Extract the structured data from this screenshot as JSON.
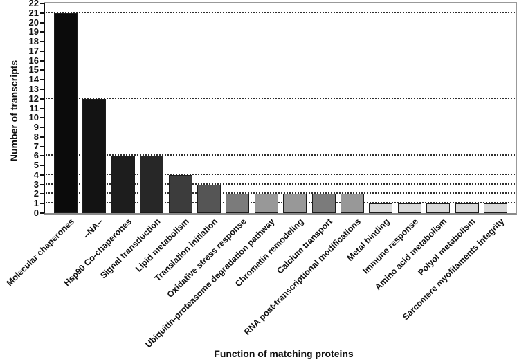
{
  "figure": {
    "background_color": "#ffffff",
    "axis_color": "#111111",
    "gridline_color": "#2e2e2e",
    "bar_border_color": "#1c1c1c"
  },
  "chart_data": {
    "type": "bar",
    "title": "",
    "xlabel": "Function of matching proteins",
    "ylabel": "Number of transcripts",
    "ylim": [
      0,
      22
    ],
    "ytick_step": 1,
    "yticks": [
      0,
      1,
      2,
      3,
      4,
      5,
      6,
      7,
      8,
      9,
      10,
      11,
      12,
      13,
      14,
      15,
      16,
      17,
      18,
      19,
      20,
      21,
      22
    ],
    "grid": "horizontal dotted lines only at values matching bar tops",
    "gridline_values": [
      21,
      12,
      6,
      4,
      3,
      2,
      1
    ],
    "legend_position": "none",
    "categories": [
      "Molecular chaperones",
      "--NA--",
      "Hsp90 Co-chaperones",
      "Signal transduction",
      "Lipid metabolism",
      "Translation initiation",
      "Oxidative stress response",
      "Ubiquitin-proteasome degradation pathway",
      "Chromatin remodeling",
      "Calcium transport",
      "RNA post-transcriptional modifications",
      "Metal binding",
      "Immune response",
      "Amino acid metabolism",
      "Polyol metabolism",
      "Sarcomere myofilaments integrity"
    ],
    "values": [
      21,
      12,
      6,
      6,
      4,
      3,
      2,
      2,
      2,
      2,
      2,
      1,
      1,
      1,
      1,
      1
    ],
    "bar_colors": [
      "#0b0b0b",
      "#131313",
      "#1d1d1d",
      "#272727",
      "#3c3c3c",
      "#555555",
      "#7b7b7b",
      "#989898",
      "#989898",
      "#7b7b7b",
      "#989898",
      "#d8d8d8",
      "#d8d8d8",
      "#d8d8d8",
      "#d8d8d8",
      "#d8d8d8"
    ]
  }
}
